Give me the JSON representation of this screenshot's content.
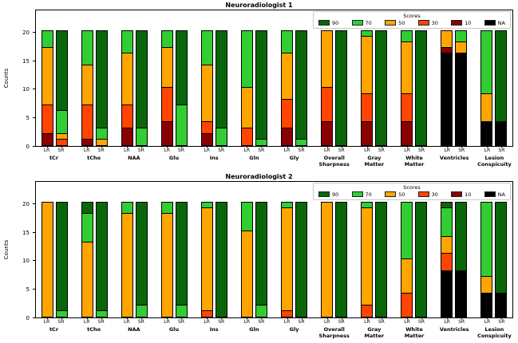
{
  "chart_data": [
    {
      "type": "bar",
      "stacked": true,
      "title": "Neuroradiologist 1",
      "ylabel": "Counts",
      "yticks": [
        0,
        5,
        10,
        15,
        20
      ],
      "ylim": [
        0,
        24
      ],
      "grid": false,
      "bar_labels": [
        "LR",
        "SR"
      ],
      "stack_order_bottom_up": [
        "NA",
        "10",
        "30",
        "50",
        "70",
        "90"
      ],
      "colors": {
        "90": "#096709",
        "70": "#32CD32",
        "50": "#FFA500",
        "30": "#FF4500",
        "10": "#8B0000",
        "NA": "#000000"
      },
      "legend": {
        "title": "Scores",
        "position": "upper right",
        "entries": [
          "90",
          "70",
          "50",
          "30",
          "10",
          "NA"
        ]
      },
      "categories": [
        {
          "label": "tCr",
          "LR": {
            "10": 2,
            "30": 5,
            "50": 10,
            "70": 3
          },
          "SR": {
            "30": 1,
            "50": 1,
            "70": 4,
            "90": 14
          }
        },
        {
          "label": "tCho",
          "LR": {
            "10": 1,
            "30": 6,
            "50": 7,
            "70": 6
          },
          "SR": {
            "50": 1,
            "70": 2,
            "90": 17
          }
        },
        {
          "label": "NAA",
          "LR": {
            "10": 3,
            "30": 4,
            "50": 9,
            "70": 4
          },
          "SR": {
            "70": 3,
            "90": 17
          }
        },
        {
          "label": "Glu",
          "LR": {
            "10": 4,
            "30": 6,
            "50": 7,
            "70": 3
          },
          "SR": {
            "70": 7,
            "90": 13
          }
        },
        {
          "label": "Ins",
          "LR": {
            "10": 2,
            "30": 2,
            "50": 10,
            "70": 6
          },
          "SR": {
            "70": 3,
            "90": 17
          }
        },
        {
          "label": "Gln",
          "LR": {
            "30": 3,
            "50": 7,
            "70": 10
          },
          "SR": {
            "70": 1,
            "90": 19
          }
        },
        {
          "label": "Gly",
          "LR": {
            "10": 3,
            "30": 5,
            "50": 8,
            "70": 4
          },
          "SR": {
            "70": 1,
            "90": 19
          }
        },
        {
          "label": "Overall\nSharpness",
          "LR": {
            "10": 4,
            "30": 6,
            "50": 10
          },
          "SR": {
            "90": 20
          }
        },
        {
          "label": "Gray\nMatter",
          "LR": {
            "10": 4,
            "30": 5,
            "50": 10,
            "70": 1
          },
          "SR": {
            "90": 20
          }
        },
        {
          "label": "White\nMatter",
          "LR": {
            "10": 4,
            "30": 5,
            "50": 9,
            "70": 2
          },
          "SR": {
            "90": 20
          }
        },
        {
          "label": "Ventricles",
          "LR": {
            "NA": 16,
            "10": 1,
            "50": 3
          },
          "SR": {
            "NA": 16,
            "50": 2,
            "70": 2
          }
        },
        {
          "label": "Lesion\nConspicuity",
          "LR": {
            "NA": 4,
            "50": 5,
            "70": 11
          },
          "SR": {
            "NA": 4,
            "90": 16
          }
        }
      ]
    },
    {
      "type": "bar",
      "stacked": true,
      "title": "Neuroradiologist 2",
      "ylabel": "Counts",
      "yticks": [
        0,
        5,
        10,
        15,
        20
      ],
      "ylim": [
        0,
        24
      ],
      "grid": false,
      "bar_labels": [
        "LR",
        "SR"
      ],
      "stack_order_bottom_up": [
        "NA",
        "10",
        "30",
        "50",
        "70",
        "90"
      ],
      "colors": {
        "90": "#096709",
        "70": "#32CD32",
        "50": "#FFA500",
        "30": "#FF4500",
        "10": "#8B0000",
        "NA": "#000000"
      },
      "legend": {
        "title": "Scores",
        "position": "upper right",
        "entries": [
          "90",
          "70",
          "50",
          "30",
          "10",
          "NA"
        ]
      },
      "categories": [
        {
          "label": "tCr",
          "LR": {
            "50": 20
          },
          "SR": {
            "70": 1,
            "90": 19
          }
        },
        {
          "label": "tCho",
          "LR": {
            "50": 13,
            "70": 5,
            "90": 2
          },
          "SR": {
            "70": 1,
            "90": 19
          }
        },
        {
          "label": "NAA",
          "LR": {
            "50": 18,
            "70": 2
          },
          "SR": {
            "70": 2,
            "90": 18
          }
        },
        {
          "label": "Glu",
          "LR": {
            "50": 18,
            "70": 2
          },
          "SR": {
            "70": 2,
            "90": 18
          }
        },
        {
          "label": "Ins",
          "LR": {
            "30": 1,
            "50": 18,
            "70": 1
          },
          "SR": {
            "90": 20
          }
        },
        {
          "label": "Gln",
          "LR": {
            "50": 15,
            "70": 5
          },
          "SR": {
            "70": 2,
            "90": 18
          }
        },
        {
          "label": "Gly",
          "LR": {
            "30": 1,
            "50": 18,
            "70": 1
          },
          "SR": {
            "90": 20
          }
        },
        {
          "label": "Overall\nSharpness",
          "LR": {
            "50": 20
          },
          "SR": {
            "90": 20
          }
        },
        {
          "label": "Gray\nMatter",
          "LR": {
            "30": 2,
            "50": 17,
            "70": 1
          },
          "SR": {
            "90": 20
          }
        },
        {
          "label": "White\nMatter",
          "LR": {
            "30": 4,
            "50": 6,
            "70": 10
          },
          "SR": {
            "90": 20
          }
        },
        {
          "label": "Ventricles",
          "LR": {
            "NA": 8,
            "30": 3,
            "50": 3,
            "70": 5,
            "90": 1
          },
          "SR": {
            "NA": 8,
            "90": 12
          }
        },
        {
          "label": "Lesion\nConspicuity",
          "LR": {
            "NA": 4,
            "50": 3,
            "70": 13
          },
          "SR": {
            "NA": 4,
            "90": 16
          }
        }
      ]
    }
  ]
}
